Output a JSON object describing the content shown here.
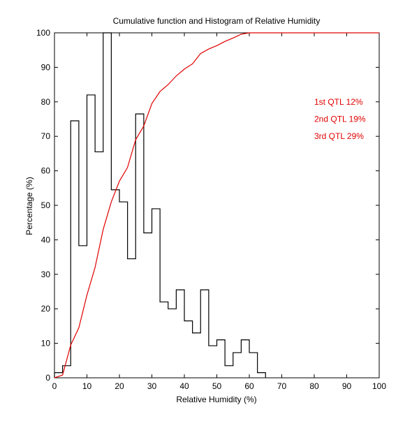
{
  "chart_data": {
    "type": "histogram+line",
    "title": "Cumulative function and Histogram of Relative Humidity",
    "xlabel": "Relative Humidity (%)",
    "ylabel": "Percentage (%)",
    "xlim": [
      0,
      100
    ],
    "ylim": [
      0,
      100
    ],
    "xticks": [
      0,
      10,
      20,
      30,
      40,
      50,
      60,
      70,
      80,
      90,
      100
    ],
    "yticks": [
      0,
      10,
      20,
      30,
      40,
      50,
      60,
      70,
      80,
      90,
      100
    ],
    "grid": false,
    "histogram": {
      "name": "Histogram",
      "color": "#000000",
      "bin_edges": [
        0,
        2.5,
        5,
        7.5,
        10,
        12.5,
        15,
        17.5,
        20,
        22.5,
        25,
        27.5,
        30,
        32.5,
        35,
        37.5,
        40,
        42.5,
        45,
        47.5,
        50,
        52.5,
        55,
        57.5,
        60,
        62.5,
        65
      ],
      "values": [
        1.5,
        3.5,
        74.5,
        38.3,
        82,
        65.5,
        100,
        54.5,
        51,
        34.5,
        76.5,
        42,
        49,
        22,
        20,
        25.5,
        16.5,
        13,
        25.5,
        9.3,
        11,
        3.5,
        7.3,
        11,
        7.3,
        1.5
      ]
    },
    "cumulative": {
      "name": "Cumulative function",
      "color": "#e00000",
      "x": [
        0,
        2.5,
        5,
        7.5,
        10,
        12.5,
        15,
        17.5,
        20,
        22.5,
        25,
        27.5,
        30,
        32.5,
        35,
        37.5,
        40,
        42.5,
        45,
        47.5,
        50,
        52.5,
        55,
        57.5,
        60,
        62.5,
        65,
        70,
        80,
        90,
        100
      ],
      "y": [
        0,
        0.8,
        9.5,
        14.5,
        24,
        32,
        43,
        51,
        57,
        61,
        69,
        73,
        79.5,
        83,
        85,
        87.5,
        89.5,
        91,
        94,
        95.3,
        96.3,
        97.5,
        98.5,
        99.6,
        100,
        100,
        100,
        100,
        100,
        100,
        100
      ]
    },
    "annotations": [
      {
        "text": "1st QTL  12%"
      },
      {
        "text": "2nd QTL  19%"
      },
      {
        "text": "3rd QTL  29%"
      }
    ]
  }
}
